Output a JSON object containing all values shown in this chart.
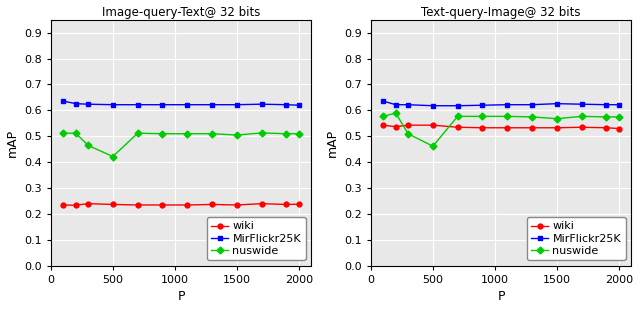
{
  "left_title": "Image-query-Text@ 32 bits",
  "right_title": "Text-query-Image@ 32 bits",
  "xlabel": "P",
  "ylabel": "mAP",
  "x": [
    100,
    200,
    300,
    500,
    700,
    900,
    1100,
    1300,
    1500,
    1700,
    1900,
    2000
  ],
  "left": {
    "wiki": [
      0.235,
      0.234,
      0.24,
      0.237,
      0.235,
      0.235,
      0.235,
      0.237,
      0.235,
      0.24,
      0.237,
      0.238
    ],
    "MirFlickr25K": [
      0.636,
      0.626,
      0.624,
      0.622,
      0.622,
      0.622,
      0.622,
      0.622,
      0.622,
      0.624,
      0.622,
      0.62
    ],
    "nuswide": [
      0.512,
      0.512,
      0.465,
      0.422,
      0.512,
      0.51,
      0.51,
      0.51,
      0.505,
      0.513,
      0.51,
      0.51
    ]
  },
  "right": {
    "wiki": [
      0.543,
      0.537,
      0.543,
      0.543,
      0.535,
      0.533,
      0.533,
      0.533,
      0.533,
      0.535,
      0.533,
      0.53
    ],
    "MirFlickr25K": [
      0.636,
      0.622,
      0.622,
      0.618,
      0.618,
      0.62,
      0.622,
      0.622,
      0.626,
      0.624,
      0.622,
      0.622
    ],
    "nuswide": [
      0.577,
      0.59,
      0.51,
      0.462,
      0.577,
      0.577,
      0.577,
      0.575,
      0.568,
      0.577,
      0.575,
      0.575
    ]
  },
  "colors": {
    "wiki": "#ff0000",
    "MirFlickr25K": "#0000ff",
    "nuswide": "#00cc00"
  },
  "markers": {
    "wiki": "o",
    "MirFlickr25K": "s",
    "nuswide": "D"
  },
  "ylim": [
    0,
    0.95
  ],
  "xlim": [
    0,
    2100
  ],
  "xticks": [
    0,
    500,
    1000,
    1500,
    2000
  ],
  "yticks": [
    0,
    0.1,
    0.2,
    0.3,
    0.4,
    0.5,
    0.6,
    0.7,
    0.8,
    0.9
  ],
  "ax_facecolor": "#e8e8e8",
  "fig_facecolor": "#ffffff",
  "grid_color": "#ffffff",
  "title_fontsize": 8.5,
  "label_fontsize": 9,
  "tick_fontsize": 8,
  "legend_fontsize": 8,
  "linewidth": 1.0,
  "markersize": 3.5
}
